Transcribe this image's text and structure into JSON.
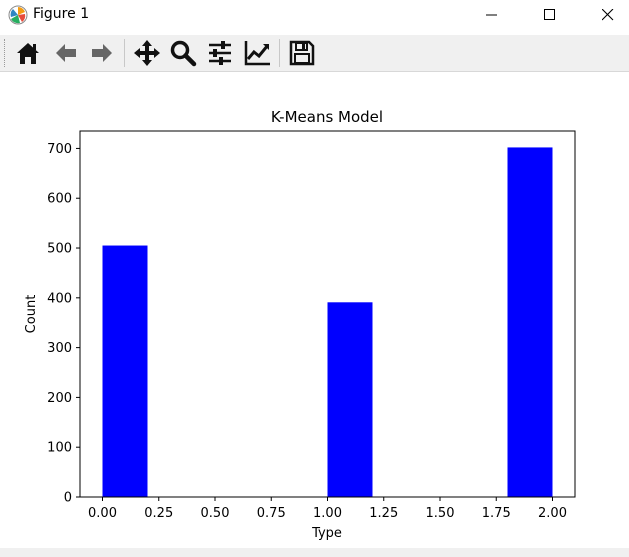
{
  "window": {
    "title": "Figure 1",
    "buttons": [
      "minimize",
      "maximize",
      "close"
    ]
  },
  "toolbar": {
    "items": [
      "home-icon",
      "back-arrow-icon",
      "forward-arrow-icon",
      "pan-move-icon",
      "zoom-magnifier-icon",
      "subplots-sliders-icon",
      "edit-axis-chart-icon",
      "save-floppy-icon"
    ]
  },
  "colors": {
    "bar": "#0000ff",
    "toolbar_bg": "#f0f0f0"
  },
  "chart_data": {
    "type": "bar",
    "title": "K-Means Model",
    "xlabel": "Type",
    "ylabel": "Count",
    "x": [
      0.1,
      1.1,
      1.9
    ],
    "values": [
      505,
      391,
      702
    ],
    "bar_width": 0.2,
    "xlim": [
      -0.1,
      2.1
    ],
    "ylim": [
      0,
      735
    ],
    "xticks": [
      "0.00",
      "0.25",
      "0.50",
      "0.75",
      "1.00",
      "1.25",
      "1.50",
      "1.75",
      "2.00"
    ],
    "yticks": [
      "0",
      "100",
      "200",
      "300",
      "400",
      "500",
      "600",
      "700"
    ],
    "grid": false,
    "legend": "none"
  }
}
